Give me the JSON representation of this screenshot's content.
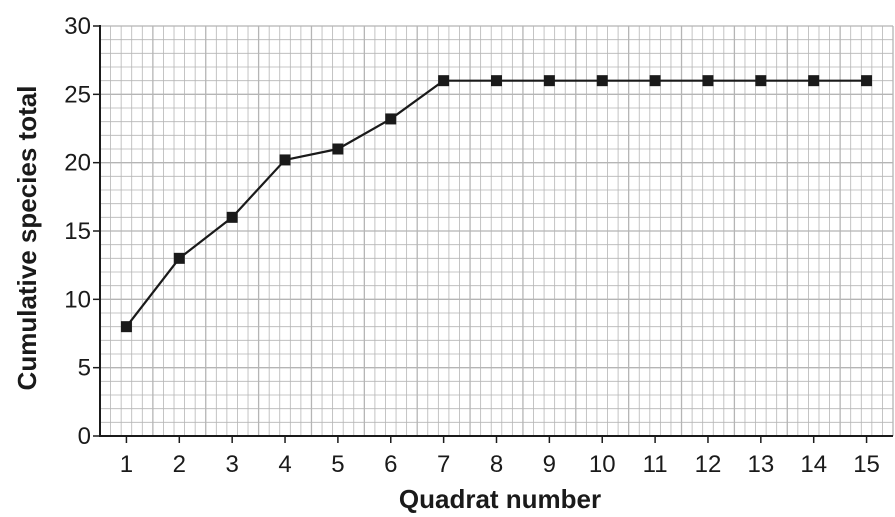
{
  "chart_data": {
    "type": "line",
    "title": "",
    "xlabel": "Quadrat number",
    "ylabel": "Cumulative species total",
    "x": [
      1,
      2,
      3,
      4,
      5,
      6,
      7,
      8,
      9,
      10,
      11,
      12,
      13,
      14,
      15
    ],
    "series": [
      {
        "values": [
          8,
          13,
          16,
          20.2,
          21,
          23.2,
          26,
          26,
          26,
          26,
          26,
          26,
          26,
          26,
          26
        ]
      }
    ],
    "x_ticks": [
      "1",
      "2",
      "3",
      "4",
      "5",
      "6",
      "7",
      "8",
      "9",
      "10",
      "11",
      "12",
      "13",
      "14",
      "15"
    ],
    "y_ticks": [
      "0",
      "5",
      "10",
      "15",
      "20",
      "25",
      "30"
    ],
    "xlim": [
      0.5,
      15.5
    ],
    "ylim": [
      0,
      30
    ],
    "grid": true,
    "marker": "square",
    "line_color": "#1a1a1a",
    "grid_color": "#b5b5b5"
  }
}
